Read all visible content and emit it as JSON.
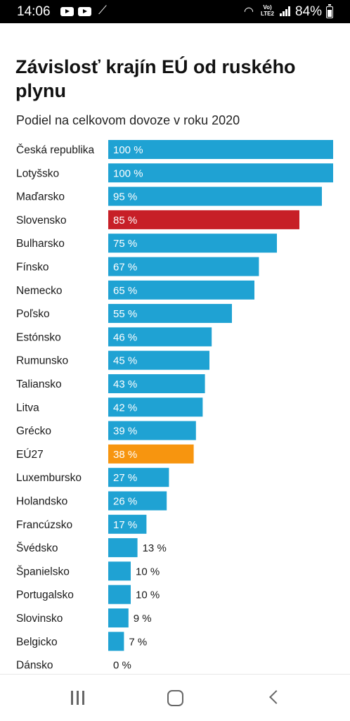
{
  "status_bar": {
    "time": "14:06",
    "icons": [
      "youtube-icon",
      "youtube-icon",
      "magic-wand-icon",
      "wifi-icon",
      "volte-icon",
      "signal-icon",
      "battery-icon"
    ],
    "volte_line1": "Vo)",
    "volte_line2": "LTE2",
    "battery": "84%"
  },
  "colors": {
    "default_bar": "#1fa2d3",
    "highlight_slovensko": "#c71f27",
    "highlight_eu27": "#f7950f",
    "label_text": "#1a1a1a",
    "value_inside": "#ffffff",
    "value_outside": "#1a1a1a"
  },
  "chart_data": {
    "type": "bar",
    "orientation": "horizontal",
    "title": "Závislosť krajín EÚ od ruského plynu",
    "subtitle": "Podiel na celkovom dovoze v roku 2020",
    "xlim": [
      0,
      100
    ],
    "value_suffix": " %",
    "categories": [
      "Česká republika",
      "Lotyšsko",
      "Maďarsko",
      "Slovensko",
      "Bulharsko",
      "Fínsko",
      "Nemecko",
      "Poľsko",
      "Estónsko",
      "Rumunsko",
      "Taliansko",
      "Litva",
      "Grécko",
      "EÚ27",
      "Luxembursko",
      "Holandsko",
      "Francúzsko",
      "Švédsko",
      "Španielsko",
      "Portugalsko",
      "Slovinsko",
      "Belgicko",
      "Dánsko"
    ],
    "values": [
      100,
      100,
      95,
      85,
      75,
      67,
      65,
      55,
      46,
      45,
      43,
      42,
      39,
      38,
      27,
      26,
      17,
      13,
      10,
      10,
      9,
      7,
      0
    ],
    "highlight": {
      "Slovensko": "#c71f27",
      "EÚ27": "#f7950f"
    },
    "grid": false,
    "legend": "none"
  },
  "nav_bar": {
    "icons": [
      "recent-apps-icon",
      "home-icon",
      "back-icon"
    ]
  }
}
